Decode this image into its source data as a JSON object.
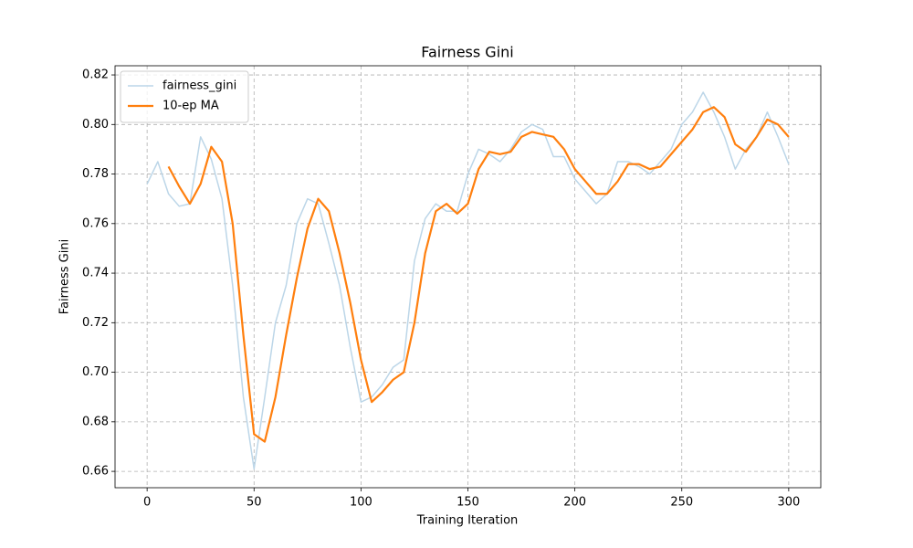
{
  "chart_data": {
    "type": "line",
    "title": "Fairness Gini",
    "x_label": "Training Iteration",
    "y_label": "Fairness Gini",
    "x": [
      0,
      5,
      10,
      15,
      20,
      25,
      30,
      35,
      40,
      45,
      50,
      55,
      60,
      65,
      70,
      75,
      80,
      85,
      90,
      95,
      100,
      105,
      110,
      115,
      120,
      125,
      130,
      135,
      140,
      145,
      150,
      155,
      160,
      165,
      170,
      175,
      180,
      185,
      190,
      195,
      200,
      205,
      210,
      215,
      220,
      225,
      230,
      235,
      240,
      245,
      250,
      255,
      260,
      265,
      270,
      275,
      280,
      285,
      290,
      295,
      300
    ],
    "series": [
      {
        "name": "fairness_gini",
        "color": "#bcd6e8",
        "width": 1.5,
        "values": [
          0.776,
          0.785,
          0.772,
          0.767,
          0.768,
          0.795,
          0.786,
          0.77,
          0.735,
          0.69,
          0.661,
          0.69,
          0.72,
          0.735,
          0.76,
          0.77,
          0.768,
          0.752,
          0.735,
          0.71,
          0.688,
          0.69,
          0.695,
          0.702,
          0.705,
          0.745,
          0.762,
          0.768,
          0.765,
          0.765,
          0.78,
          0.79,
          0.788,
          0.785,
          0.79,
          0.797,
          0.8,
          0.798,
          0.787,
          0.787,
          0.778,
          0.773,
          0.768,
          0.772,
          0.785,
          0.785,
          0.783,
          0.78,
          0.785,
          0.79,
          0.8,
          0.805,
          0.813,
          0.805,
          0.795,
          0.782,
          0.79,
          0.795,
          0.805,
          0.795,
          0.784
        ]
      },
      {
        "name": "10-ep MA",
        "color": "#ff7f0e",
        "width": 2.2,
        "values": [
          null,
          null,
          0.783,
          0.775,
          0.768,
          0.776,
          0.791,
          0.785,
          0.76,
          0.715,
          0.675,
          0.672,
          0.69,
          0.715,
          0.738,
          0.758,
          0.77,
          0.765,
          0.748,
          0.728,
          0.705,
          0.688,
          0.692,
          0.697,
          0.7,
          0.72,
          0.748,
          0.765,
          0.768,
          0.764,
          0.768,
          0.782,
          0.789,
          0.788,
          0.789,
          0.795,
          0.797,
          0.796,
          0.795,
          0.79,
          0.782,
          0.777,
          0.772,
          0.772,
          0.777,
          0.784,
          0.784,
          0.782,
          0.783,
          0.788,
          0.793,
          0.798,
          0.805,
          0.807,
          0.803,
          0.792,
          0.789,
          0.795,
          0.802,
          0.8,
          0.795
        ]
      }
    ],
    "xlim": [
      -15,
      315
    ],
    "xticks": [
      0,
      50,
      100,
      150,
      200,
      250,
      300
    ],
    "ylim": [
      0.6534,
      0.8237
    ],
    "yticks": [
      0.66,
      0.68,
      {
        "value": 0.7,
        "label": "0.70"
      },
      0.72,
      0.74,
      0.76,
      0.78,
      {
        "value": 0.8,
        "label": "0.80"
      },
      0.82
    ],
    "grid": true,
    "legend": "upper left"
  }
}
